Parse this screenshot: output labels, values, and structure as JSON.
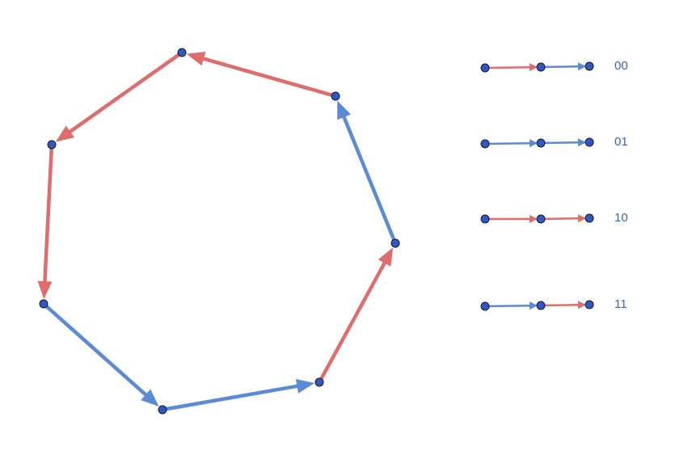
{
  "colors": {
    "red": "#e06c6c",
    "blue": "#5b8ad6",
    "node_fill": "#2e58c8",
    "node_stroke": "#1a1a1a",
    "label": "#3a63c4"
  },
  "graph": {
    "nodes": [
      "n0",
      "n1",
      "n2",
      "n3",
      "n4",
      "n5",
      "n6"
    ],
    "edges": [
      {
        "from": "n0",
        "to": "n1",
        "color": "red"
      },
      {
        "from": "n1",
        "to": "n2",
        "color": "red"
      },
      {
        "from": "n2",
        "to": "n3",
        "color": "red"
      },
      {
        "from": "n3",
        "to": "n4",
        "color": "blue"
      },
      {
        "from": "n4",
        "to": "n5",
        "color": "blue"
      },
      {
        "from": "n5",
        "to": "n6",
        "color": "red"
      },
      {
        "from": "n6",
        "to": "n0",
        "color": "blue"
      }
    ]
  },
  "legend": [
    {
      "label": "00",
      "edges": [
        "red",
        "blue"
      ]
    },
    {
      "label": "01",
      "edges": [
        "blue",
        "blue"
      ]
    },
    {
      "label": "10",
      "edges": [
        "red",
        "red"
      ]
    },
    {
      "label": "11",
      "edges": [
        "blue",
        "red"
      ]
    }
  ]
}
